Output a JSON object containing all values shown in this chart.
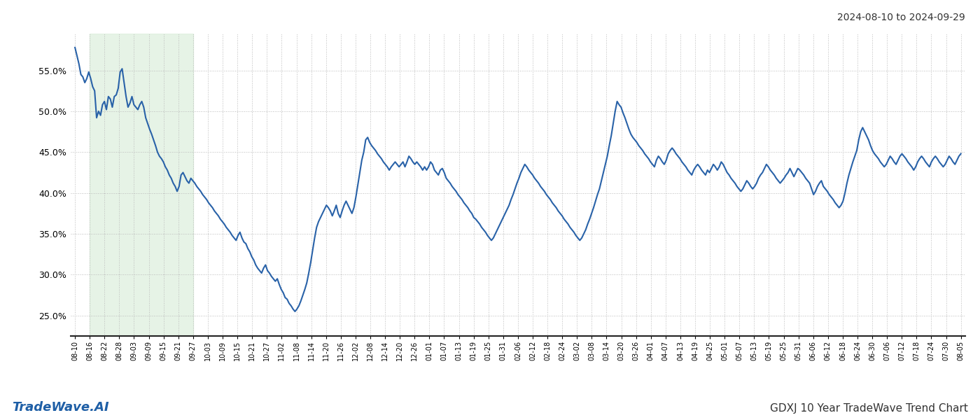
{
  "title_right": "2024-08-10 to 2024-09-29",
  "footer_left": "TradeWave.AI",
  "footer_right": "GDXJ 10 Year TradeWave Trend Chart",
  "ylim": [
    22.5,
    59.5
  ],
  "yticks": [
    25.0,
    30.0,
    35.0,
    40.0,
    45.0,
    50.0,
    55.0
  ],
  "line_color": "#2962a8",
  "line_width": 1.5,
  "grid_color": "#bbbbbb",
  "background_color": "#ffffff",
  "highlight_color": "#d6ecd6",
  "highlight_alpha": 0.6,
  "x_labels": [
    "08-10",
    "08-16",
    "08-22",
    "08-28",
    "09-03",
    "09-09",
    "09-15",
    "09-21",
    "09-27",
    "10-03",
    "10-09",
    "10-15",
    "10-21",
    "10-27",
    "11-02",
    "11-08",
    "11-14",
    "11-20",
    "11-26",
    "12-02",
    "12-08",
    "12-14",
    "12-20",
    "12-26",
    "01-01",
    "01-07",
    "01-13",
    "01-19",
    "01-25",
    "01-31",
    "02-06",
    "02-12",
    "02-18",
    "02-24",
    "03-02",
    "03-08",
    "03-14",
    "03-20",
    "03-26",
    "04-01",
    "04-07",
    "04-13",
    "04-19",
    "04-25",
    "05-01",
    "05-07",
    "05-13",
    "05-19",
    "05-25",
    "05-31",
    "06-06",
    "06-12",
    "06-18",
    "06-24",
    "06-30",
    "07-06",
    "07-12",
    "07-18",
    "07-24",
    "07-30",
    "08-05"
  ],
  "highlight_x_start_label": "08-16",
  "highlight_x_end_label": "09-27",
  "values": [
    57.8,
    56.8,
    55.8,
    54.5,
    54.2,
    53.5,
    54.0,
    54.8,
    54.0,
    53.0,
    52.5,
    49.2,
    50.0,
    49.5,
    50.8,
    51.2,
    50.2,
    51.8,
    51.5,
    50.5,
    51.8,
    52.0,
    52.8,
    54.8,
    55.2,
    53.5,
    51.8,
    50.5,
    51.0,
    51.8,
    50.8,
    50.5,
    50.2,
    50.8,
    51.2,
    50.5,
    49.2,
    48.5,
    47.8,
    47.2,
    46.5,
    45.8,
    45.0,
    44.5,
    44.2,
    43.8,
    43.2,
    42.8,
    42.2,
    41.8,
    41.2,
    40.8,
    40.2,
    40.8,
    42.2,
    42.5,
    42.0,
    41.5,
    41.2,
    41.8,
    41.5,
    41.2,
    40.8,
    40.5,
    40.2,
    39.8,
    39.5,
    39.2,
    38.8,
    38.5,
    38.2,
    37.8,
    37.5,
    37.2,
    36.8,
    36.5,
    36.2,
    35.8,
    35.5,
    35.2,
    34.8,
    34.5,
    34.2,
    34.8,
    35.2,
    34.5,
    34.0,
    33.8,
    33.2,
    32.8,
    32.2,
    31.8,
    31.2,
    30.8,
    30.5,
    30.2,
    30.8,
    31.2,
    30.5,
    30.2,
    29.8,
    29.5,
    29.2,
    29.5,
    28.8,
    28.2,
    27.8,
    27.2,
    27.0,
    26.5,
    26.2,
    25.8,
    25.5,
    25.8,
    26.2,
    26.8,
    27.5,
    28.2,
    29.0,
    30.2,
    31.5,
    33.0,
    34.5,
    35.8,
    36.5,
    37.0,
    37.5,
    38.0,
    38.5,
    38.2,
    37.8,
    37.2,
    37.8,
    38.5,
    37.5,
    37.0,
    37.8,
    38.5,
    39.0,
    38.5,
    38.0,
    37.5,
    38.2,
    39.5,
    41.0,
    42.5,
    44.0,
    45.0,
    46.5,
    46.8,
    46.2,
    45.8,
    45.5,
    45.2,
    44.8,
    44.5,
    44.2,
    43.8,
    43.5,
    43.2,
    42.8,
    43.2,
    43.5,
    43.8,
    43.5,
    43.2,
    43.5,
    43.8,
    43.2,
    43.8,
    44.5,
    44.2,
    43.8,
    43.5,
    43.8,
    43.5,
    43.2,
    42.8,
    43.2,
    42.8,
    43.2,
    43.8,
    43.5,
    42.8,
    42.5,
    42.2,
    42.8,
    43.0,
    42.5,
    41.8,
    41.5,
    41.2,
    40.8,
    40.5,
    40.2,
    39.8,
    39.5,
    39.2,
    38.8,
    38.5,
    38.2,
    37.8,
    37.5,
    37.0,
    36.8,
    36.5,
    36.2,
    35.8,
    35.5,
    35.2,
    34.8,
    34.5,
    34.2,
    34.5,
    35.0,
    35.5,
    36.0,
    36.5,
    37.0,
    37.5,
    38.0,
    38.5,
    39.2,
    39.8,
    40.5,
    41.2,
    41.8,
    42.5,
    43.0,
    43.5,
    43.2,
    42.8,
    42.5,
    42.2,
    41.8,
    41.5,
    41.2,
    40.8,
    40.5,
    40.2,
    39.8,
    39.5,
    39.2,
    38.8,
    38.5,
    38.2,
    37.8,
    37.5,
    37.2,
    36.8,
    36.5,
    36.2,
    35.8,
    35.5,
    35.2,
    34.8,
    34.5,
    34.2,
    34.5,
    35.0,
    35.5,
    36.2,
    36.8,
    37.5,
    38.2,
    39.0,
    39.8,
    40.5,
    41.5,
    42.5,
    43.5,
    44.5,
    45.8,
    47.0,
    48.5,
    50.0,
    51.2,
    50.8,
    50.5,
    49.8,
    49.2,
    48.5,
    47.8,
    47.2,
    46.8,
    46.5,
    46.2,
    45.8,
    45.5,
    45.2,
    44.8,
    44.5,
    44.2,
    43.8,
    43.5,
    43.2,
    44.0,
    44.5,
    44.2,
    43.8,
    43.5,
    44.0,
    44.8,
    45.2,
    45.5,
    45.2,
    44.8,
    44.5,
    44.2,
    43.8,
    43.5,
    43.2,
    42.8,
    42.5,
    42.2,
    42.8,
    43.2,
    43.5,
    43.2,
    42.8,
    42.5,
    42.2,
    42.8,
    42.5,
    43.0,
    43.5,
    43.2,
    42.8,
    43.2,
    43.8,
    43.5,
    43.0,
    42.5,
    42.2,
    41.8,
    41.5,
    41.2,
    40.8,
    40.5,
    40.2,
    40.5,
    41.0,
    41.5,
    41.2,
    40.8,
    40.5,
    40.8,
    41.2,
    41.8,
    42.2,
    42.5,
    43.0,
    43.5,
    43.2,
    42.8,
    42.5,
    42.2,
    41.8,
    41.5,
    41.2,
    41.5,
    41.8,
    42.2,
    42.5,
    43.0,
    42.5,
    42.0,
    42.5,
    43.0,
    42.8,
    42.5,
    42.2,
    41.8,
    41.5,
    41.2,
    40.5,
    39.8,
    40.2,
    40.8,
    41.2,
    41.5,
    40.8,
    40.5,
    40.2,
    39.8,
    39.5,
    39.2,
    38.8,
    38.5,
    38.2,
    38.5,
    39.0,
    40.0,
    41.2,
    42.2,
    43.0,
    43.8,
    44.5,
    45.2,
    46.5,
    47.5,
    48.0,
    47.5,
    47.0,
    46.5,
    45.8,
    45.2,
    44.8,
    44.5,
    44.2,
    43.8,
    43.5,
    43.2,
    43.5,
    44.0,
    44.5,
    44.2,
    43.8,
    43.5,
    44.0,
    44.5,
    44.8,
    44.5,
    44.2,
    43.8,
    43.5,
    43.2,
    42.8,
    43.2,
    43.8,
    44.2,
    44.5,
    44.2,
    43.8,
    43.5,
    43.2,
    43.8,
    44.2,
    44.5,
    44.2,
    43.8,
    43.5,
    43.2,
    43.5,
    44.0,
    44.5,
    44.2,
    43.8,
    43.5,
    44.0,
    44.5,
    44.8
  ]
}
